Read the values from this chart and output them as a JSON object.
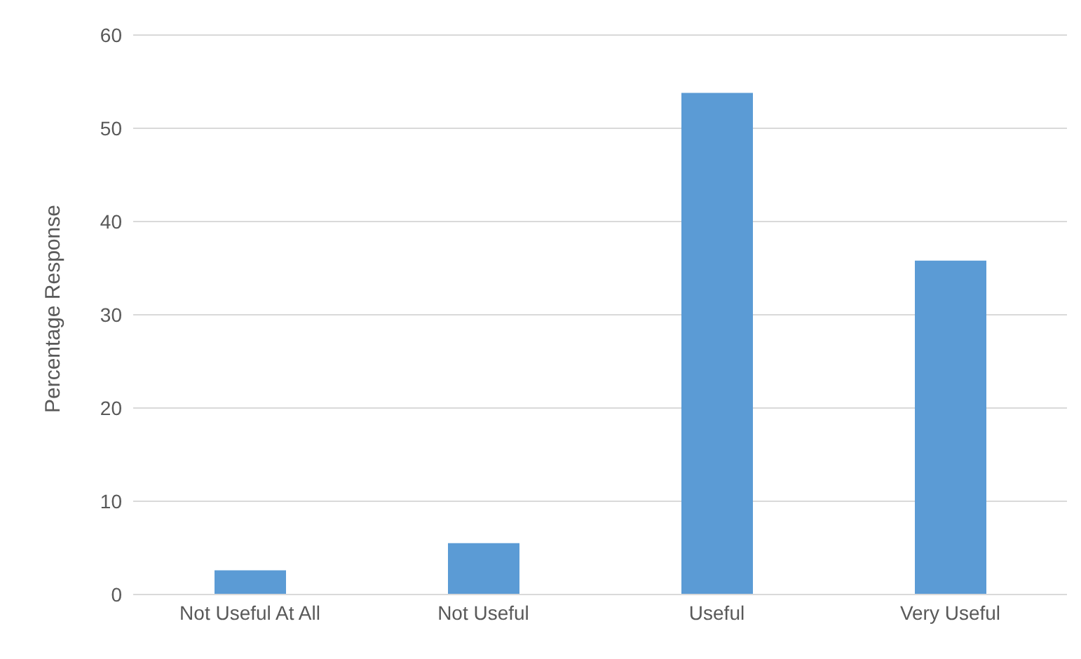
{
  "chart_data": {
    "type": "bar",
    "ylabel": "Percentage Response",
    "categories": [
      "Not Useful At All",
      "Not Useful",
      "Useful",
      "Very Useful"
    ],
    "values": [
      2.6,
      5.5,
      53.8,
      35.8
    ],
    "color": "#5b9bd5",
    "ylim": [
      0,
      60
    ],
    "yticks": [
      0,
      10,
      20,
      30,
      40,
      50,
      60
    ],
    "grid": "y"
  }
}
